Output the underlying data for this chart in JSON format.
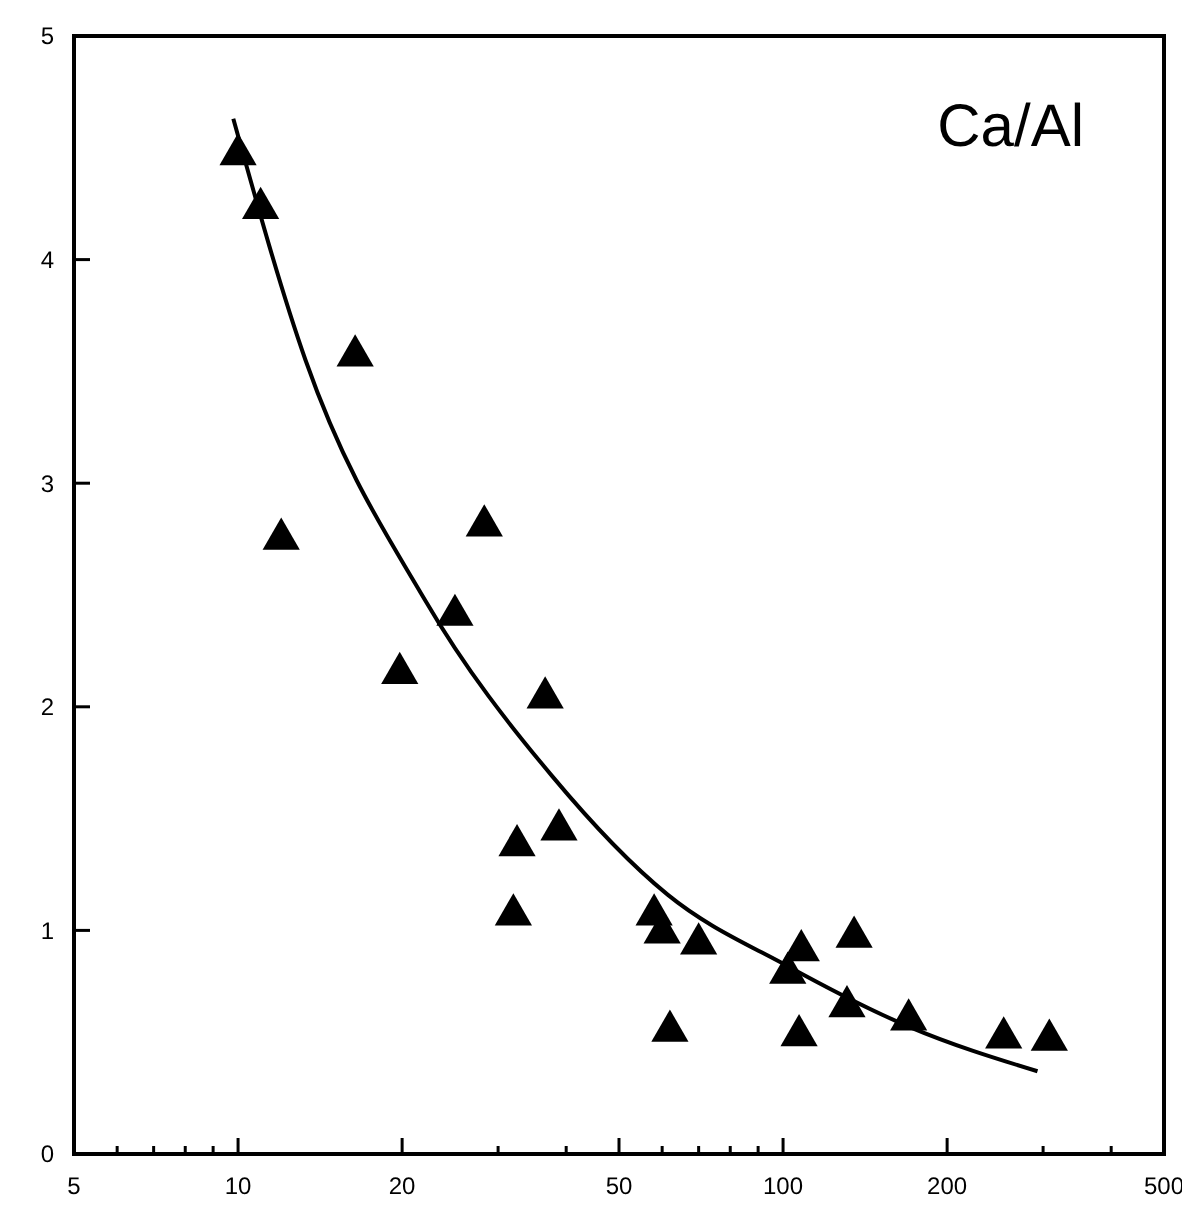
{
  "chart_data": {
    "type": "scatter",
    "marker": "triangle",
    "log": "x",
    "annotations": [
      "Ca/Al"
    ],
    "xlim": [
      5,
      500
    ],
    "ylim": [
      0,
      5
    ],
    "xticks": [
      5,
      {
        "value": 6,
        "label": null
      },
      {
        "value": 7,
        "label": null
      },
      {
        "value": 8,
        "label": null
      },
      {
        "value": 9,
        "label": null
      },
      10,
      20,
      {
        "value": 30,
        "label": null
      },
      {
        "value": 40,
        "label": null
      },
      50,
      {
        "value": 60,
        "label": null
      },
      {
        "value": 70,
        "label": null
      },
      {
        "value": 80,
        "label": null
      },
      {
        "value": 90,
        "label": null
      },
      100,
      200,
      {
        "value": 300,
        "label": null
      },
      {
        "value": 400,
        "label": null
      },
      500
    ],
    "yticks": [
      0,
      1,
      2,
      3,
      4,
      5
    ],
    "series": [
      {
        "color": "#000000",
        "x": [
          10,
          11,
          12,
          16.4,
          19.8,
          28.3,
          25,
          36.6,
          32.5,
          38.8,
          32,
          58,
          60,
          70,
          62,
          108,
          102,
          107,
          135,
          131,
          170,
          254,
          308
        ],
        "values": [
          4.47,
          4.23,
          2.75,
          3.57,
          2.15,
          2.81,
          2.41,
          2.04,
          1.38,
          1.45,
          1.07,
          1.07,
          0.99,
          0.94,
          0.55,
          0.91,
          0.81,
          0.53,
          0.97,
          0.66,
          0.6,
          0.52,
          0.51
        ]
      },
      {
        "type": "line",
        "color": "#000000",
        "line_style": "solid",
        "marker": "none",
        "x": [
          9.8,
          13.3,
          22,
          37.7,
          61.4,
          102,
          170,
          293
        ],
        "values": [
          4.63,
          3.55,
          2.48,
          1.69,
          1.16,
          0.84,
          0.57,
          0.37
        ]
      }
    ]
  }
}
